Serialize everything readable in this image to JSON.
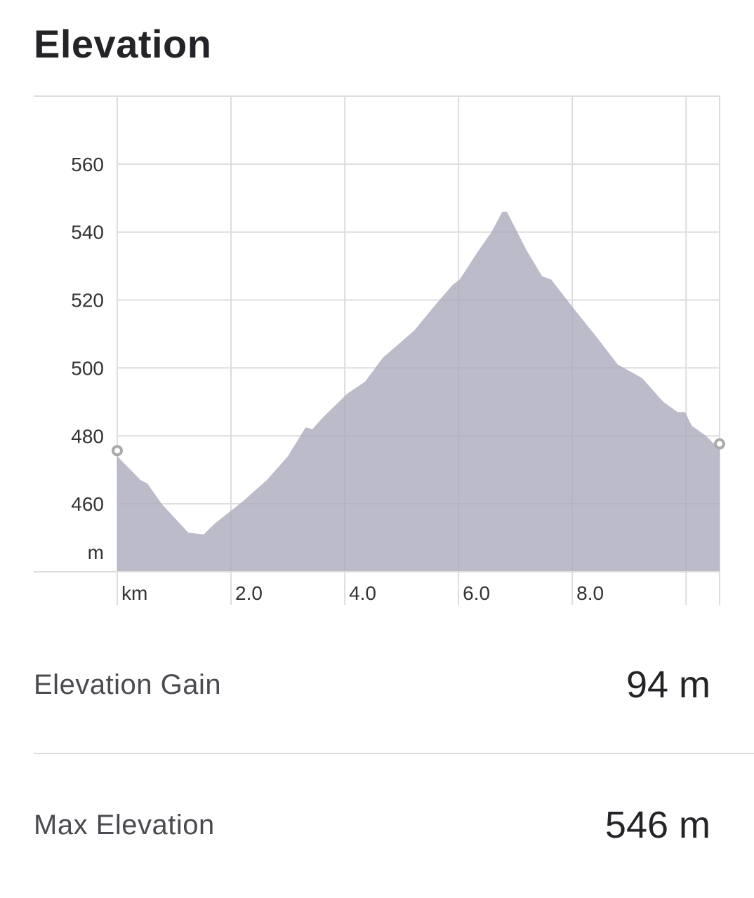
{
  "title": "Elevation",
  "chart_data": {
    "type": "area",
    "xlabel": "km",
    "ylabel": "m",
    "x_unit": "km",
    "y_unit": "m",
    "xlim": [
      0,
      10.59
    ],
    "ylim": [
      440,
      580
    ],
    "x_ticks": [
      {
        "value": 2,
        "label": "2.0"
      },
      {
        "value": 4,
        "label": "4.0"
      },
      {
        "value": 6,
        "label": "6.0"
      },
      {
        "value": 8,
        "label": "8.0"
      },
      {
        "value": 10,
        "label": ""
      }
    ],
    "y_ticks": [
      {
        "value": 460,
        "label": "460"
      },
      {
        "value": 480,
        "label": "480"
      },
      {
        "value": 500,
        "label": "500"
      },
      {
        "value": 520,
        "label": "520"
      },
      {
        "value": 540,
        "label": "540"
      },
      {
        "value": 560,
        "label": "560"
      }
    ],
    "grid": true,
    "fill_color": "#a9a8ba",
    "start_end_markers": true,
    "x": [
      0,
      0.41,
      0.53,
      0.78,
      1.25,
      1.52,
      1.7,
      2.2,
      2.63,
      3.0,
      3.31,
      3.43,
      3.62,
      4.05,
      4.36,
      4.67,
      5.22,
      5.59,
      5.9,
      6.02,
      6.33,
      6.58,
      6.77,
      6.85,
      7.2,
      7.47,
      7.63,
      8.0,
      8.43,
      8.8,
      9.23,
      9.6,
      9.85,
      9.98,
      10.1,
      10.35,
      10.59
    ],
    "y": [
      474,
      467,
      466,
      460,
      451.5,
      451,
      454,
      460.6,
      467,
      474,
      482.5,
      482,
      485.5,
      492.5,
      496,
      503,
      511,
      518.5,
      524.5,
      526,
      534,
      540,
      546,
      546,
      534.5,
      527,
      526,
      518,
      509,
      501,
      497,
      490,
      487,
      487,
      483,
      480,
      476
    ]
  },
  "stats": [
    {
      "label": "Elevation Gain",
      "value": "94 m"
    },
    {
      "label": "Max Elevation",
      "value": "546 m"
    }
  ]
}
